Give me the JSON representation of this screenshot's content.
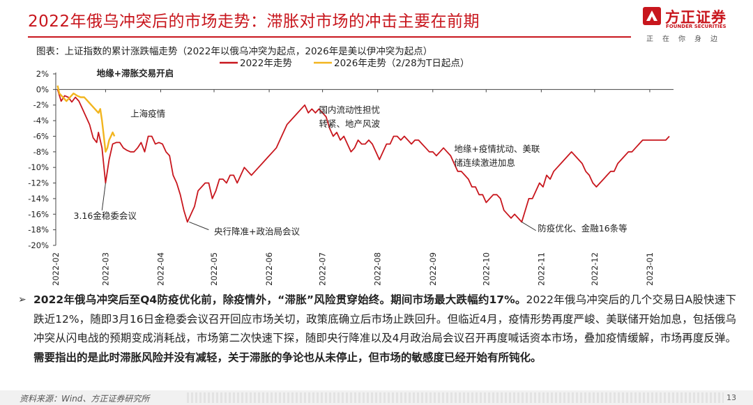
{
  "slide": {
    "title": "2022年俄乌冲突后的市场走势：滞胀对市场的冲击主要在前期",
    "page_number": "13",
    "source": "资料来源：Wind、方正证券研究所"
  },
  "logo": {
    "name_cn": "方正证券",
    "name_en": "FOUNDER SECURITIES",
    "slogan": "正在你身边",
    "color": "#c8161d"
  },
  "chart_caption": "图表：上证指数的累计涨跌幅走势（2022年以俄乌冲突为起点，2026年是美以伊冲突为起点）",
  "chart_data": {
    "type": "line",
    "ylim": [
      -20,
      2
    ],
    "yticks": [
      "2%",
      "0%",
      "-2%",
      "-4%",
      "-6%",
      "-8%",
      "-10%",
      "-12%",
      "-14%",
      "-16%",
      "-18%",
      "-20%"
    ],
    "xlim": [
      "2022-02-01",
      "2023-01-12"
    ],
    "xticks": [
      "2022-02",
      "2022-03",
      "2022-04",
      "2022-05",
      "2022-06",
      "2022-07",
      "2022-08",
      "2022-09",
      "2022-10",
      "2022-11",
      "2022-12",
      "2023-01"
    ],
    "legend": "top",
    "series": [
      {
        "name": "2022年走势",
        "color": "#c8161d",
        "points": [
          [
            "2022-02-02",
            0.0
          ],
          [
            "2022-02-04",
            -1.5
          ],
          [
            "2022-02-06",
            -0.8
          ],
          [
            "2022-02-08",
            -1.0
          ],
          [
            "2022-02-10",
            -1.6
          ],
          [
            "2022-02-12",
            -1.0
          ],
          [
            "2022-02-14",
            -1.5
          ],
          [
            "2022-02-16",
            -2.5
          ],
          [
            "2022-02-18",
            -3.5
          ],
          [
            "2022-02-20",
            -4.5
          ],
          [
            "2022-02-22",
            -6.2
          ],
          [
            "2022-02-24",
            -6.8
          ],
          [
            "2022-02-25",
            -5.5
          ],
          [
            "2022-02-27",
            -7.5
          ],
          [
            "2022-03-01",
            -12.0
          ],
          [
            "2022-03-03",
            -9.0
          ],
          [
            "2022-03-05",
            -7.0
          ],
          [
            "2022-03-07",
            -6.8
          ],
          [
            "2022-03-09",
            -6.8
          ],
          [
            "2022-03-11",
            -7.5
          ],
          [
            "2022-03-13",
            -7.8
          ],
          [
            "2022-03-15",
            -8.0
          ],
          [
            "2022-03-17",
            -8.0
          ],
          [
            "2022-03-19",
            -7.5
          ],
          [
            "2022-03-21",
            -6.8
          ],
          [
            "2022-03-23",
            -8.0
          ],
          [
            "2022-03-25",
            -6.0
          ],
          [
            "2022-03-27",
            -6.0
          ],
          [
            "2022-03-29",
            -7.0
          ],
          [
            "2022-03-31",
            -6.8
          ],
          [
            "2022-04-02",
            -7.0
          ],
          [
            "2022-04-04",
            -8.0
          ],
          [
            "2022-04-06",
            -8.5
          ],
          [
            "2022-04-08",
            -11.0
          ],
          [
            "2022-04-10",
            -12.0
          ],
          [
            "2022-04-12",
            -13.5
          ],
          [
            "2022-04-14",
            -15.5
          ],
          [
            "2022-04-16",
            -17.0
          ],
          [
            "2022-04-18",
            -16.0
          ],
          [
            "2022-04-20",
            -15.0
          ],
          [
            "2022-04-22",
            -13.0
          ],
          [
            "2022-04-24",
            -12.5
          ],
          [
            "2022-04-26",
            -12.0
          ],
          [
            "2022-04-28",
            -12.0
          ],
          [
            "2022-04-30",
            -14.0
          ],
          [
            "2022-05-02",
            -13.0
          ],
          [
            "2022-05-04",
            -11.5
          ],
          [
            "2022-05-06",
            -11.5
          ],
          [
            "2022-05-08",
            -12.0
          ],
          [
            "2022-05-10",
            -11.0
          ],
          [
            "2022-05-12",
            -11.0
          ],
          [
            "2022-05-14",
            -12.0
          ],
          [
            "2022-05-16",
            -11.0
          ],
          [
            "2022-05-18",
            -10.0
          ],
          [
            "2022-05-20",
            -10.5
          ],
          [
            "2022-05-22",
            -11.0
          ],
          [
            "2022-05-24",
            -10.5
          ],
          [
            "2022-05-26",
            -10.0
          ],
          [
            "2022-05-28",
            -9.5
          ],
          [
            "2022-05-30",
            -9.0
          ],
          [
            "2022-06-01",
            -8.5
          ],
          [
            "2022-06-03",
            -8.0
          ],
          [
            "2022-06-05",
            -7.5
          ],
          [
            "2022-06-07",
            -6.5
          ],
          [
            "2022-06-09",
            -5.5
          ],
          [
            "2022-06-11",
            -4.5
          ],
          [
            "2022-06-13",
            -4.0
          ],
          [
            "2022-06-15",
            -3.5
          ],
          [
            "2022-06-17",
            -3.0
          ],
          [
            "2022-06-19",
            -2.5
          ],
          [
            "2022-06-21",
            -2.0
          ],
          [
            "2022-06-23",
            -3.0
          ],
          [
            "2022-06-25",
            -2.5
          ],
          [
            "2022-06-27",
            -3.0
          ],
          [
            "2022-06-29",
            -2.5
          ],
          [
            "2022-07-01",
            -3.0
          ],
          [
            "2022-07-03",
            -3.5
          ],
          [
            "2022-07-05",
            -5.0
          ],
          [
            "2022-07-07",
            -6.0
          ],
          [
            "2022-07-09",
            -5.5
          ],
          [
            "2022-07-11",
            -6.5
          ],
          [
            "2022-07-13",
            -6.0
          ],
          [
            "2022-07-15",
            -7.0
          ],
          [
            "2022-07-17",
            -8.0
          ],
          [
            "2022-07-19",
            -7.5
          ],
          [
            "2022-07-21",
            -6.5
          ],
          [
            "2022-07-23",
            -7.0
          ],
          [
            "2022-07-25",
            -7.0
          ],
          [
            "2022-07-27",
            -6.5
          ],
          [
            "2022-07-29",
            -7.0
          ],
          [
            "2022-07-31",
            -8.0
          ],
          [
            "2022-08-02",
            -9.0
          ],
          [
            "2022-08-04",
            -8.0
          ],
          [
            "2022-08-06",
            -7.0
          ],
          [
            "2022-08-08",
            -7.0
          ],
          [
            "2022-08-10",
            -6.0
          ],
          [
            "2022-08-12",
            -6.0
          ],
          [
            "2022-08-14",
            -6.5
          ],
          [
            "2022-08-16",
            -6.0
          ],
          [
            "2022-08-18",
            -6.5
          ],
          [
            "2022-08-20",
            -7.0
          ],
          [
            "2022-08-22",
            -6.5
          ],
          [
            "2022-08-24",
            -6.5
          ],
          [
            "2022-08-26",
            -7.0
          ],
          [
            "2022-08-28",
            -7.5
          ],
          [
            "2022-08-30",
            -8.0
          ],
          [
            "2022-09-01",
            -8.0
          ],
          [
            "2022-09-03",
            -8.5
          ],
          [
            "2022-09-05",
            -8.0
          ],
          [
            "2022-09-07",
            -7.5
          ],
          [
            "2022-09-09",
            -8.0
          ],
          [
            "2022-09-11",
            -8.5
          ],
          [
            "2022-09-13",
            -9.5
          ],
          [
            "2022-09-15",
            -10.5
          ],
          [
            "2022-09-17",
            -10.5
          ],
          [
            "2022-09-19",
            -11.0
          ],
          [
            "2022-09-21",
            -11.5
          ],
          [
            "2022-09-23",
            -12.5
          ],
          [
            "2022-09-25",
            -12.5
          ],
          [
            "2022-09-27",
            -13.5
          ],
          [
            "2022-09-29",
            -13.5
          ],
          [
            "2022-10-01",
            -14.5
          ],
          [
            "2022-10-03",
            -14.0
          ],
          [
            "2022-10-05",
            -13.5
          ],
          [
            "2022-10-07",
            -13.5
          ],
          [
            "2022-10-09",
            -14.0
          ],
          [
            "2022-10-11",
            -15.5
          ],
          [
            "2022-10-13",
            -16.0
          ],
          [
            "2022-10-15",
            -16.5
          ],
          [
            "2022-10-17",
            -16.0
          ],
          [
            "2022-10-19",
            -16.5
          ],
          [
            "2022-10-21",
            -17.0
          ],
          [
            "2022-10-23",
            -15.5
          ],
          [
            "2022-10-25",
            -14.0
          ],
          [
            "2022-10-27",
            -14.0
          ],
          [
            "2022-10-29",
            -13.0
          ],
          [
            "2022-10-31",
            -12.0
          ],
          [
            "2022-11-02",
            -12.5
          ],
          [
            "2022-11-04",
            -11.0
          ],
          [
            "2022-11-06",
            -11.5
          ],
          [
            "2022-11-08",
            -10.5
          ],
          [
            "2022-11-10",
            -10.0
          ],
          [
            "2022-11-12",
            -9.5
          ],
          [
            "2022-11-14",
            -9.0
          ],
          [
            "2022-11-16",
            -8.5
          ],
          [
            "2022-11-18",
            -8.0
          ],
          [
            "2022-11-20",
            -8.5
          ],
          [
            "2022-11-22",
            -9.0
          ],
          [
            "2022-11-24",
            -9.5
          ],
          [
            "2022-11-26",
            -10.5
          ],
          [
            "2022-11-28",
            -11.0
          ],
          [
            "2022-11-30",
            -12.0
          ],
          [
            "2022-12-02",
            -12.5
          ],
          [
            "2022-12-04",
            -12.0
          ],
          [
            "2022-12-06",
            -11.5
          ],
          [
            "2022-12-08",
            -11.0
          ],
          [
            "2022-12-10",
            -10.5
          ],
          [
            "2022-12-12",
            -10.5
          ],
          [
            "2022-12-14",
            -9.5
          ],
          [
            "2022-12-16",
            -9.0
          ],
          [
            "2022-12-18",
            -8.5
          ],
          [
            "2022-12-20",
            -8.0
          ],
          [
            "2022-12-22",
            -8.0
          ],
          [
            "2022-12-24",
            -7.5
          ],
          [
            "2022-12-26",
            -7.0
          ],
          [
            "2022-12-28",
            -6.5
          ],
          [
            "2022-12-30",
            -6.5
          ],
          [
            "2023-01-02",
            -6.5
          ],
          [
            "2023-01-04",
            -6.5
          ],
          [
            "2023-01-06",
            -6.5
          ],
          [
            "2023-01-08",
            -6.5
          ],
          [
            "2023-01-10",
            -6.5
          ],
          [
            "2023-01-12",
            -6.0
          ]
        ]
      },
      {
        "name": "2026年走势（2/28为T日起点）",
        "color": "#f2b51f",
        "points": [
          [
            "2022-02-02",
            0.5
          ],
          [
            "2022-02-03",
            -0.5
          ],
          [
            "2022-02-05",
            -1.0
          ],
          [
            "2022-02-07",
            -1.5
          ],
          [
            "2022-02-09",
            -1.0
          ],
          [
            "2022-02-11",
            -0.5
          ],
          [
            "2022-02-13",
            -0.8
          ],
          [
            "2022-02-15",
            -1.0
          ],
          [
            "2022-02-17",
            -1.0
          ],
          [
            "2022-02-19",
            -1.5
          ],
          [
            "2022-02-21",
            -2.0
          ],
          [
            "2022-02-23",
            -2.5
          ],
          [
            "2022-02-25",
            -3.0
          ],
          [
            "2022-02-26",
            -2.5
          ],
          [
            "2022-02-27",
            -4.0
          ],
          [
            "2022-02-28",
            -6.0
          ],
          [
            "2022-03-01",
            -8.0
          ],
          [
            "2022-03-02",
            -7.5
          ],
          [
            "2022-03-03",
            -6.5
          ],
          [
            "2022-03-04",
            -6.0
          ],
          [
            "2022-03-05",
            -5.5
          ],
          [
            "2022-03-06",
            -6.0
          ]
        ]
      }
    ],
    "annotations": [
      {
        "text": "地缘+滞胀交易开启",
        "date": "2022-02-24",
        "value": 1.7,
        "bold": true
      },
      {
        "text": "上海疫情",
        "date": "2022-03-15",
        "value": -3.5
      },
      {
        "text": "3.16金稳委会议",
        "date": "2022-02-11",
        "value": -16.6
      },
      {
        "text": "央行降准+政治局会议",
        "date": "2022-05-01",
        "value": -18.6
      },
      {
        "text": "国内流动性担忧",
        "date": "2022-06-29",
        "value": -3.0
      },
      {
        "text": "转紧、地产风波",
        "date": "2022-06-29",
        "value": -4.8
      },
      {
        "text": "地缘+疫情扰动、美联",
        "date": "2022-09-13",
        "value": -8.0
      },
      {
        "text": "储连续激进加息",
        "date": "2022-09-13",
        "value": -9.8
      },
      {
        "text": "防疫优化、金融16条等",
        "date": "2022-10-30",
        "value": -18.2
      }
    ],
    "leaders": [
      {
        "from": [
          "2022-03-01",
          -12.0
        ],
        "to": [
          "2022-02-27",
          -15.5
        ]
      },
      {
        "from": [
          "2022-04-17",
          -17.0
        ],
        "to": [
          "2022-04-28",
          -18.0
        ]
      },
      {
        "from": [
          "2022-10-21",
          -17.0
        ],
        "to": [
          "2022-10-29",
          -18.1
        ]
      }
    ]
  },
  "summary": {
    "lead_bold": "2022年俄乌冲突后至Q4防疫优化前，除疫情外，“滞胀”风险贯穿始终。期间市场最大跌幅约17%。",
    "middle": "2022年俄乌冲突后的几个交易日A股快速下跌近12%，随即3月16日金稳委会议召开回应市场关切，政策底确立后市场止跌回升。但临近4月，疫情形势再度严峻、美联储开始加息，包括俄乌冲突从闪电战的预期变成消耗战，市场第二次快速下探，随即央行降准以及4月政治局会议召开再度喊话资本市场，叠加疫情缓解，市场再度反弹。",
    "tail_bold": "需要指出的是此时滞胀风险并没有减轻，关于滞胀的争论也从未停止，但市场的敏感度已经开始有所钝化。"
  }
}
